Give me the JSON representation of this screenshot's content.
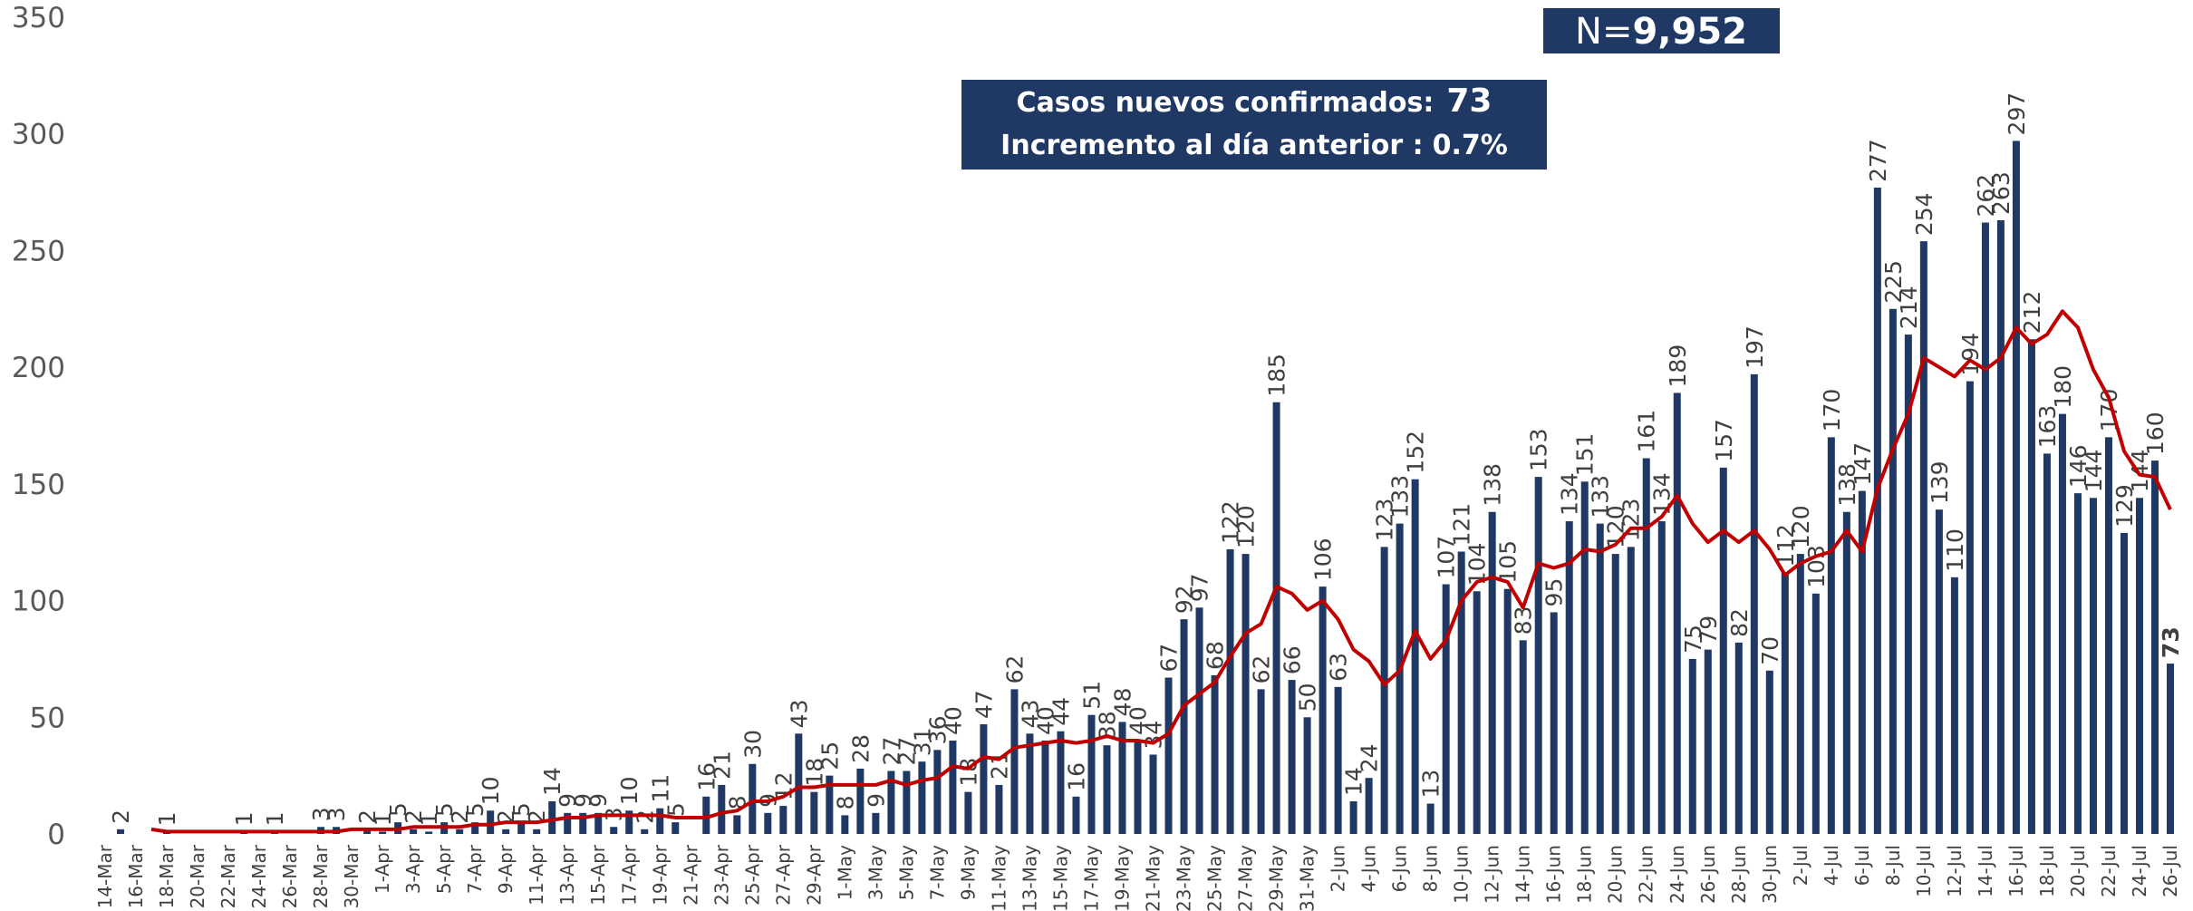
{
  "chart_data": {
    "type": "bar",
    "annotations": {
      "n_prefix": "N=",
      "n_value": "9,952",
      "new_cases_label": "Casos nuevos confirmados:",
      "new_cases_value": "73",
      "increase_label": "Incremento al día anterior :",
      "increase_value": "0.7%"
    },
    "categories": [
      "14-Mar",
      null,
      "16-Mar",
      null,
      "18-Mar",
      null,
      "20-Mar",
      null,
      "22-Mar",
      null,
      "24-Mar",
      null,
      "26-Mar",
      null,
      "28-Mar",
      null,
      "30-Mar",
      null,
      "1-Apr",
      null,
      "3-Apr",
      null,
      "5-Apr",
      null,
      "7-Apr",
      null,
      "9-Apr",
      null,
      "11-Apr",
      null,
      "13-Apr",
      null,
      "15-Apr",
      null,
      "17-Apr",
      null,
      "19-Apr",
      null,
      "21-Apr",
      null,
      "23-Apr",
      null,
      "25-Apr",
      null,
      "27-Apr",
      null,
      "29-Apr",
      null,
      "1-May",
      null,
      "3-May",
      null,
      "5-May",
      null,
      "7-May",
      null,
      "9-May",
      null,
      "11-May",
      null,
      "13-May",
      null,
      "15-May",
      null,
      "17-May",
      null,
      "19-May",
      null,
      "21-May",
      null,
      "23-May",
      null,
      "25-May",
      null,
      "27-May",
      null,
      "29-May",
      null,
      "31-May",
      null,
      "2-Jun",
      null,
      "4-Jun",
      null,
      "6-Jun",
      null,
      "8-Jun",
      null,
      "10-Jun",
      null,
      "12-Jun",
      null,
      "14-Jun",
      null,
      "16-Jun",
      null,
      "18-Jun",
      null,
      "20-Jun",
      null,
      "22-Jun",
      null,
      "24-Jun",
      null,
      "26-Jun",
      null,
      "28-Jun",
      null,
      "30-Jun",
      null,
      "2-Jul",
      null,
      "4-Jul",
      null,
      "6-Jul",
      null,
      "8-Jul",
      null,
      "10-Jul",
      null,
      "12-Jul",
      null,
      "14-Jul",
      null,
      "16-Jul",
      null,
      "18-Jul",
      null,
      "20-Jul",
      null,
      "22-Jul",
      null,
      "24-Jul",
      null,
      "26-Jul"
    ],
    "series": [
      {
        "type": "bar",
        "color": "#1f3864",
        "values": [
          0,
          2,
          0,
          0,
          1,
          0,
          0,
          0,
          0,
          1,
          0,
          1,
          0,
          0,
          3,
          3,
          0,
          2,
          1,
          5,
          2,
          1,
          5,
          2,
          5,
          10,
          2,
          5,
          2,
          14,
          9,
          9,
          9,
          3,
          10,
          2,
          11,
          5,
          0,
          16,
          21,
          8,
          30,
          9,
          12,
          43,
          18,
          25,
          8,
          28,
          9,
          27,
          27,
          31,
          36,
          40,
          18,
          47,
          21,
          62,
          43,
          40,
          44,
          16,
          51,
          38,
          48,
          40,
          34,
          67,
          92,
          97,
          68,
          122,
          120,
          62,
          185,
          66,
          50,
          106,
          63,
          14,
          24,
          123,
          133,
          152,
          13,
          107,
          121,
          104,
          138,
          105,
          83,
          153,
          95,
          134,
          151,
          133,
          120,
          123,
          161,
          134,
          189,
          75,
          79,
          157,
          82,
          197,
          70,
          112,
          120,
          103,
          170,
          138,
          147,
          277,
          225,
          214,
          254,
          139,
          110,
          194,
          262,
          263,
          297,
          212,
          163,
          180,
          146,
          144,
          170,
          129,
          144,
          160,
          73
        ]
      },
      {
        "type": "line",
        "color": "#c00000",
        "values": [
          null,
          null,
          null,
          2,
          1,
          1,
          1,
          1,
          1,
          1,
          1,
          1,
          1,
          1,
          1,
          1,
          2,
          2,
          2,
          2,
          3,
          3,
          3,
          3,
          4,
          4,
          5,
          5,
          5,
          6,
          7,
          7,
          8,
          8,
          8,
          8,
          8,
          7,
          7,
          7,
          9,
          10,
          14,
          14,
          16,
          20,
          20,
          21,
          21,
          21,
          21,
          23,
          21,
          23,
          24,
          29,
          28,
          33,
          32,
          37,
          38,
          39,
          40,
          39,
          40,
          42,
          40,
          40,
          39,
          43,
          55,
          60,
          65,
          76,
          86,
          90,
          106,
          103,
          96,
          100,
          92,
          79,
          74,
          64,
          70,
          87,
          75,
          83,
          100,
          108,
          110,
          108,
          97,
          116,
          114,
          116,
          122,
          121,
          124,
          131,
          131,
          136,
          145,
          133,
          125,
          130,
          125,
          130,
          122,
          111,
          116,
          119,
          121,
          130,
          121,
          148,
          165,
          180,
          204,
          200,
          196,
          203,
          199,
          204,
          217,
          210,
          214,
          224,
          217,
          199,
          187,
          164,
          154,
          153,
          139
        ]
      }
    ],
    "ylim": [
      0,
      350
    ],
    "yticks": [
      0,
      50,
      100,
      150,
      200,
      250,
      300,
      350
    ],
    "grid": false
  }
}
